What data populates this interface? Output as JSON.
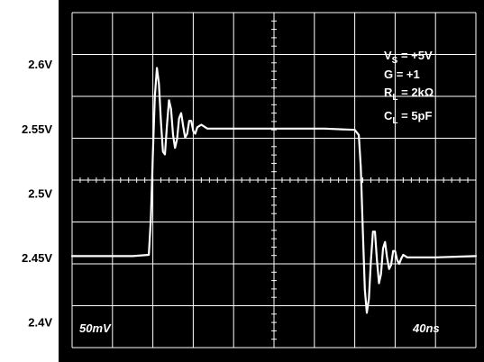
{
  "chart_data": {
    "type": "line",
    "title": "",
    "xlabel": "",
    "ylabel": "",
    "y_tick_labels": [
      "2.6V",
      "2.55V",
      "2.5V",
      "2.45V",
      "2.4V"
    ],
    "y_ticks": [
      2.6,
      2.55,
      2.5,
      2.45,
      2.4
    ],
    "ylim": [
      2.38,
      2.64
    ],
    "xlim": [
      0,
      400
    ],
    "x_unit": "ns",
    "grid": true,
    "grid_divisions": {
      "x": 10,
      "y": 8
    },
    "scale_labels": {
      "vertical": "50mV",
      "horizontal": "40ns"
    },
    "conditions": [
      {
        "main": "V",
        "sub": "S",
        "rest": " = +5V"
      },
      {
        "main": "G = +1",
        "sub": "",
        "rest": ""
      },
      {
        "main": "R",
        "sub": "L",
        "rest": " = 2kΩ"
      },
      {
        "main": "C",
        "sub": "L",
        "rest": " = 5pF"
      }
    ],
    "colors": {
      "background": "#000000",
      "grid": "#ffffff",
      "trace": "#ffffff",
      "page": "#ffffff"
    },
    "series": [
      {
        "x": [
          0,
          60,
          76,
          78,
          80,
          82,
          84,
          86,
          88,
          90,
          92,
          94,
          96,
          98,
          100,
          102,
          104,
          106,
          108,
          110,
          112,
          114,
          116,
          118,
          120,
          122,
          124,
          128,
          134,
          140,
          150,
          200,
          250,
          280,
          284,
          286,
          288,
          290,
          292,
          294,
          296,
          298,
          300,
          302,
          304,
          306,
          308,
          310,
          312,
          314,
          316,
          318,
          320,
          322,
          324,
          326,
          328,
          332,
          340,
          360,
          400
        ],
        "y": [
          2.451,
          2.451,
          2.452,
          2.48,
          2.53,
          2.575,
          2.597,
          2.585,
          2.555,
          2.532,
          2.53,
          2.553,
          2.572,
          2.565,
          2.545,
          2.535,
          2.542,
          2.558,
          2.562,
          2.552,
          2.543,
          2.546,
          2.556,
          2.556,
          2.548,
          2.546,
          2.551,
          2.553,
          2.55,
          2.55,
          2.55,
          2.55,
          2.55,
          2.549,
          2.545,
          2.52,
          2.47,
          2.425,
          2.407,
          2.418,
          2.447,
          2.47,
          2.47,
          2.448,
          2.43,
          2.437,
          2.457,
          2.462,
          2.45,
          2.441,
          2.444,
          2.455,
          2.455,
          2.448,
          2.445,
          2.449,
          2.452,
          2.45,
          2.45,
          2.45,
          2.451
        ]
      }
    ]
  }
}
